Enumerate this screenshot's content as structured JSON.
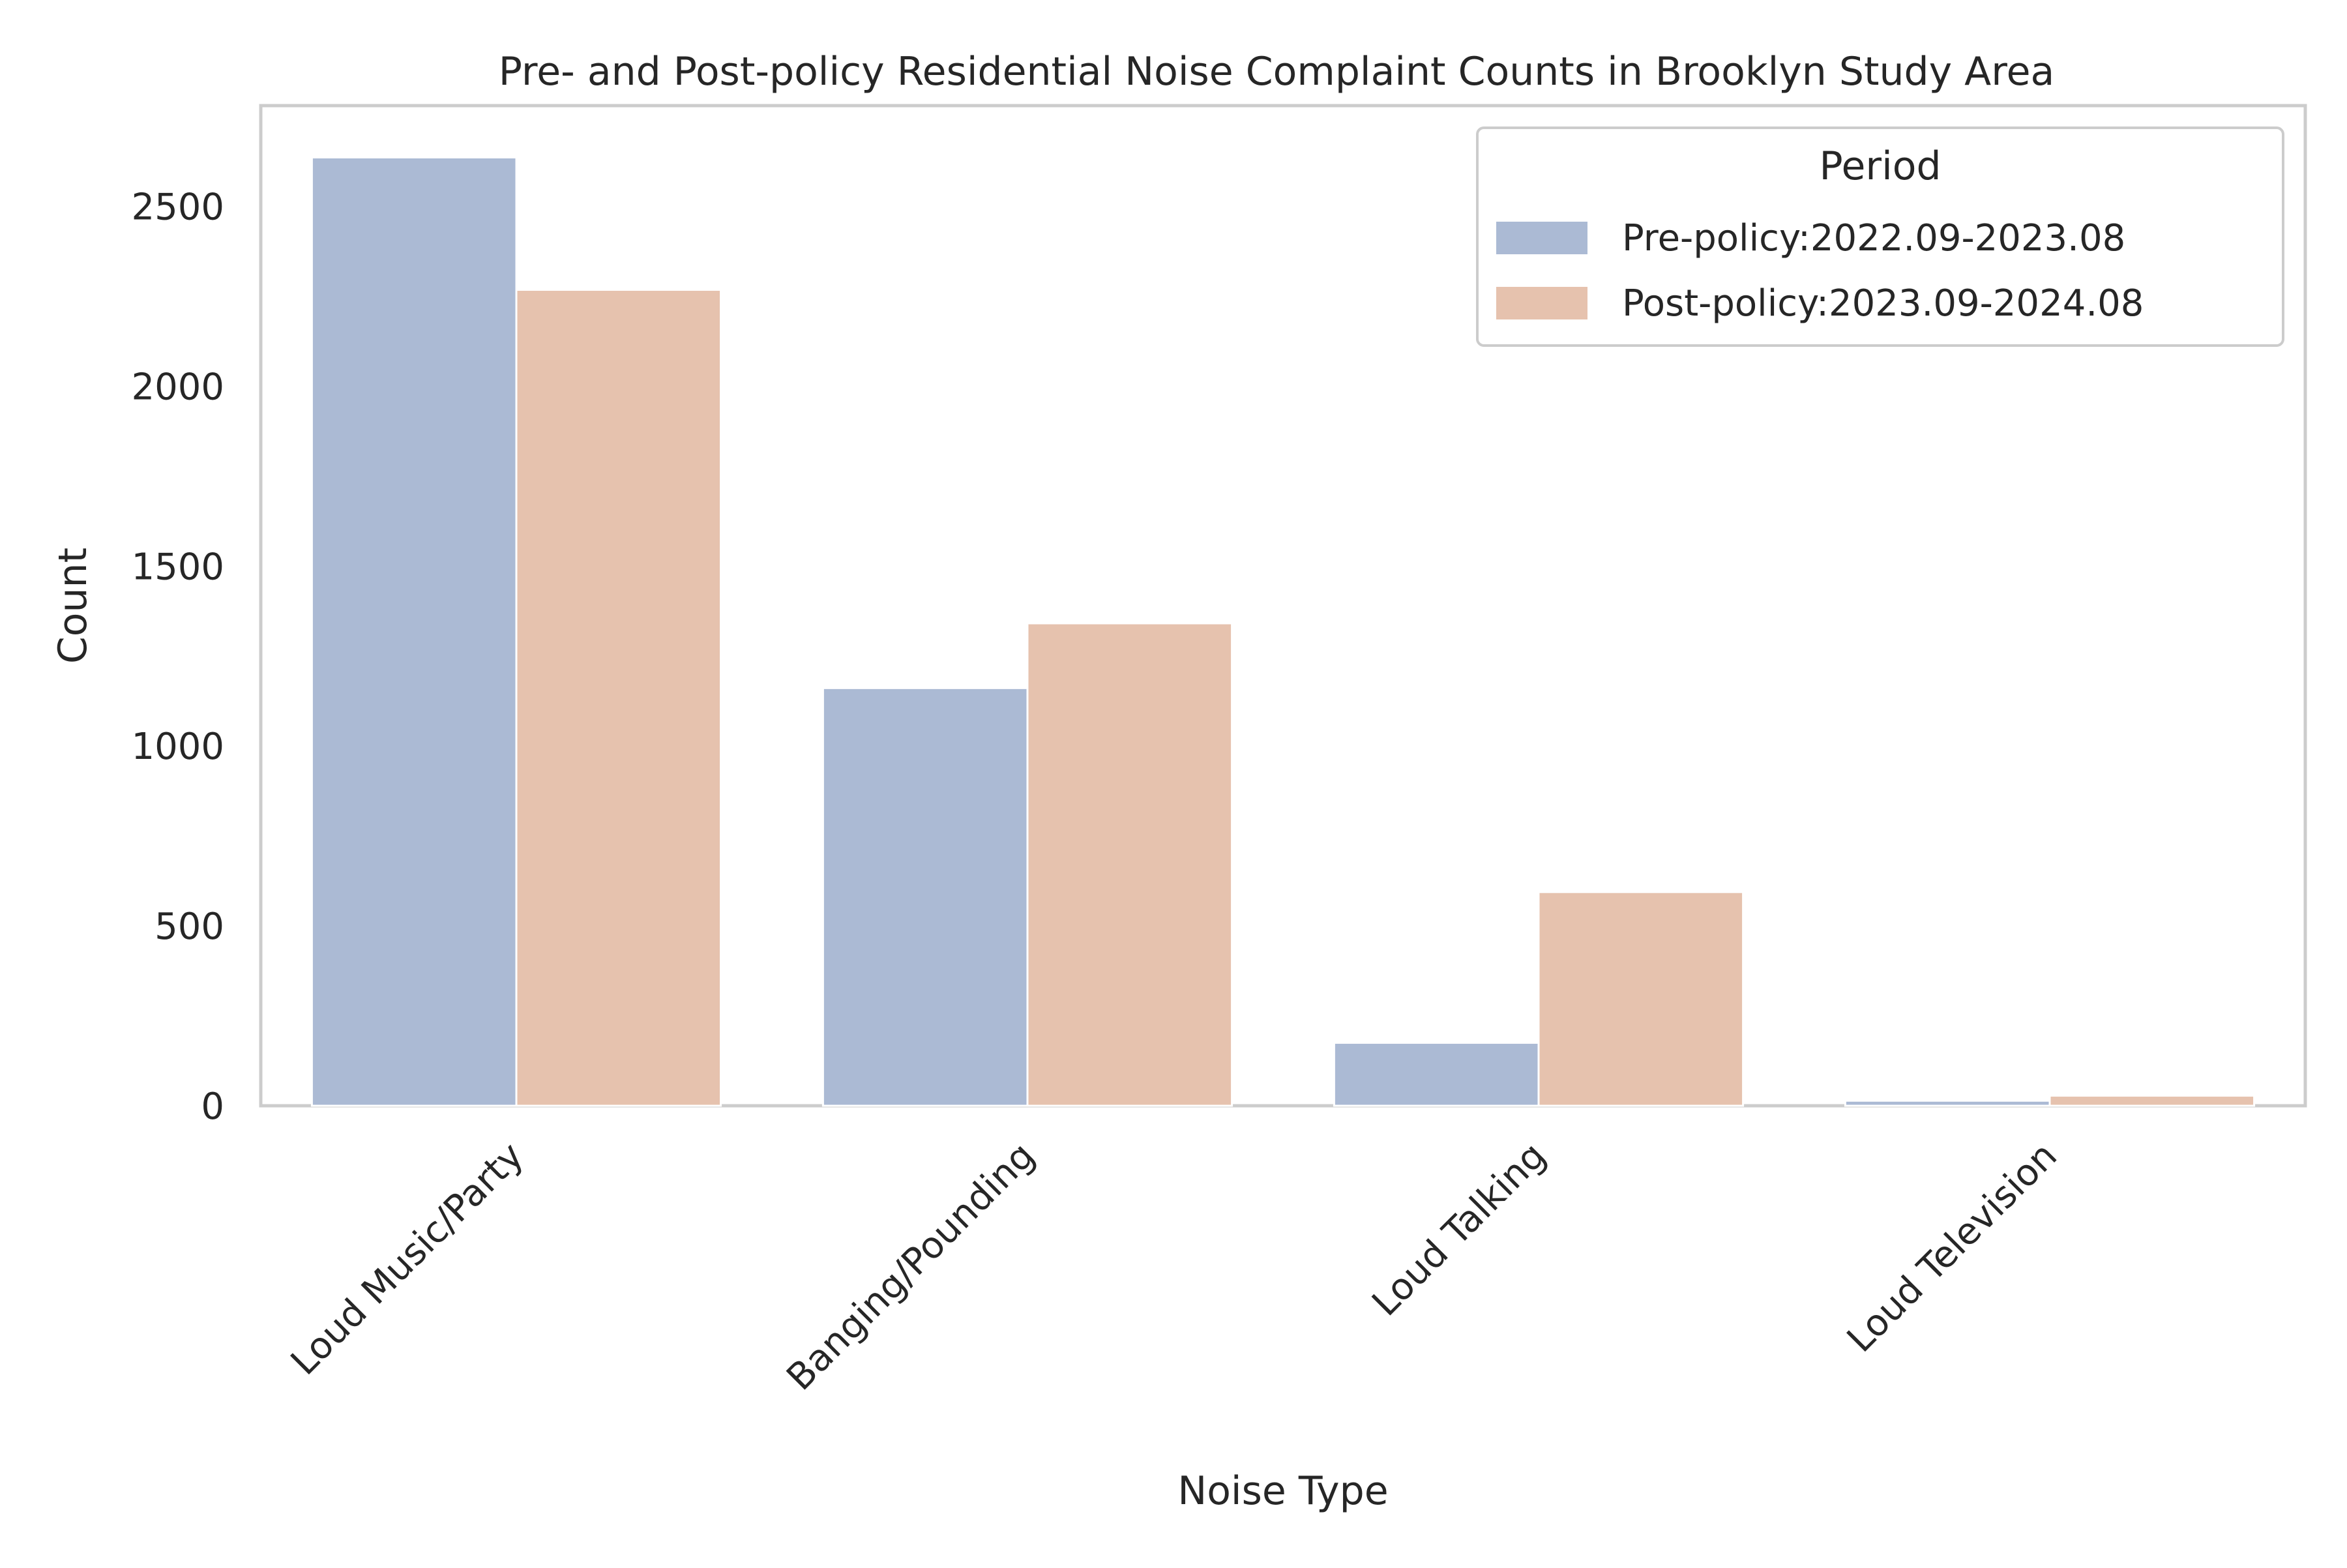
{
  "chart_data": {
    "type": "bar",
    "title": "Pre- and Post-policy Residential Noise Complaint Counts in Brooklyn Study Area",
    "xlabel": "Noise Type",
    "ylabel": "Count",
    "categories": [
      "Loud Music/Party",
      "Banging/Pounding",
      "Loud Talking",
      "Loud Television"
    ],
    "series": [
      {
        "name": "Pre-policy:2022.09-2023.08",
        "values": [
          2636,
          1161,
          175,
          14
        ],
        "color": "#abbad4"
      },
      {
        "name": "Post-policy:2023.09-2024.08",
        "values": [
          2268,
          1341,
          594,
          28
        ],
        "color": "#e6c2ae"
      }
    ],
    "ylim": [
      0,
      2780
    ],
    "yticks": [
      0,
      500,
      1000,
      1500,
      2000,
      2500
    ],
    "grid": false,
    "legend": {
      "title": "Period",
      "position": "top-right"
    }
  }
}
